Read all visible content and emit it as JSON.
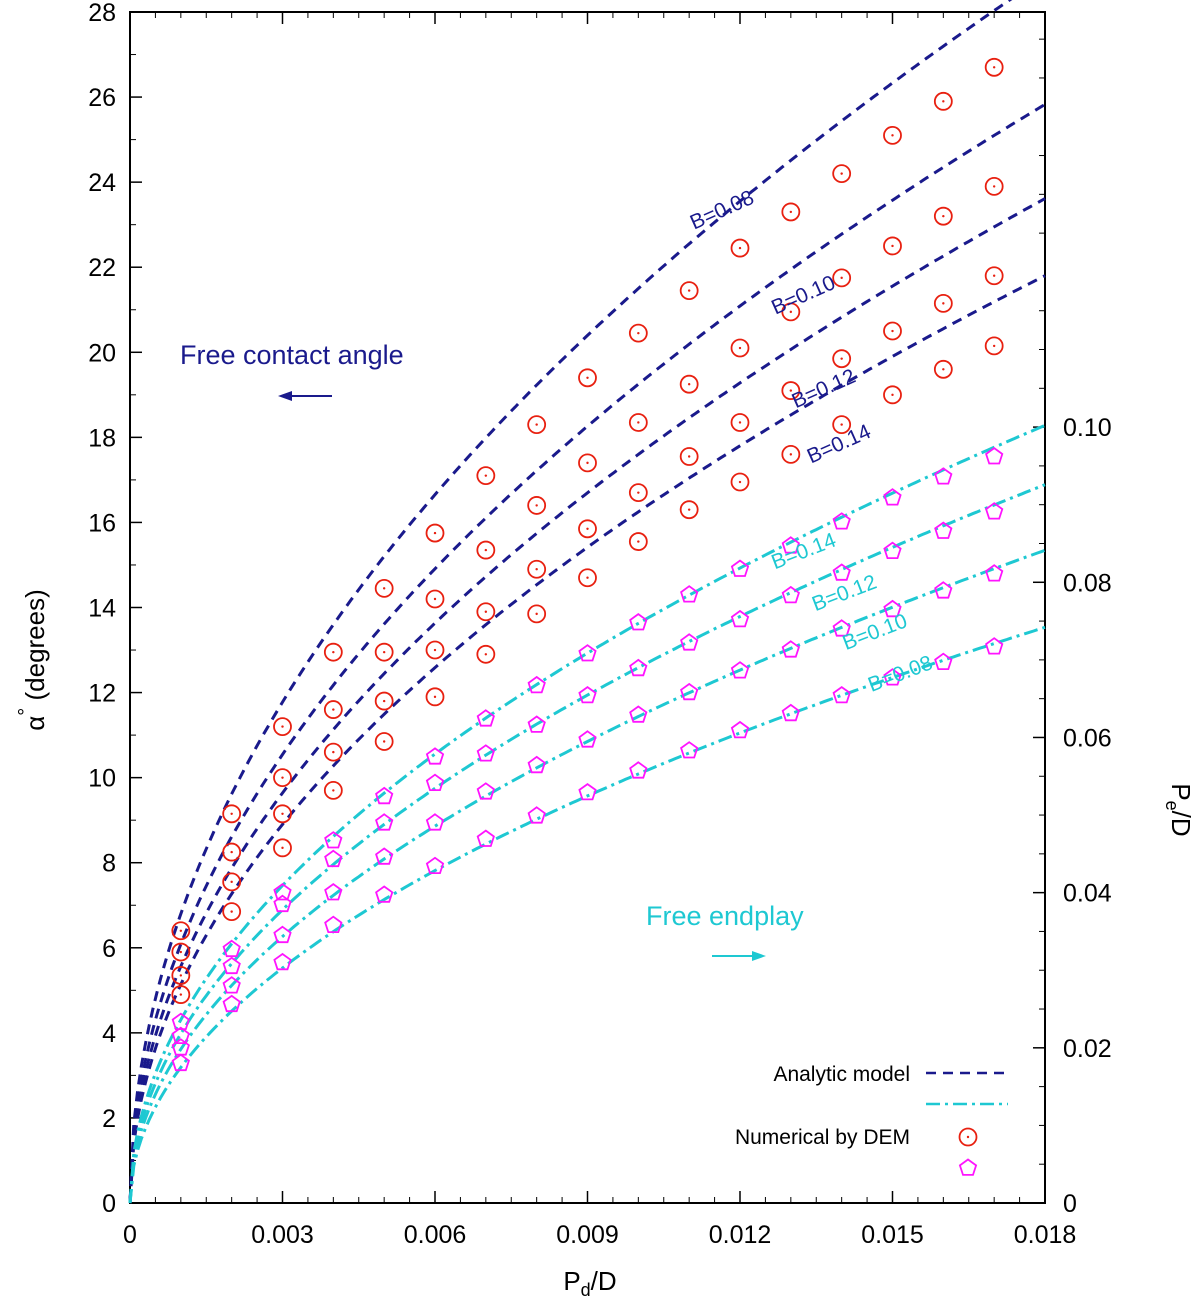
{
  "colors": {
    "analytic_alpha": "#1a1a8c",
    "analytic_endplay": "#1ec8d2",
    "dem_alpha": "#e82010",
    "dem_endplay": "#ff14ff",
    "axis": "#000000"
  },
  "chart_data": {
    "type": "line",
    "xlabel": "P",
    "xlabel_sub": "d",
    "xlabel_tail": "/D",
    "ylabel": "α° (degrees)",
    "ylabel_main": "α",
    "ylabel_sup": "°",
    "ylabel_tail": " (degrees)",
    "y2label": "P",
    "y2label_sub": "e",
    "y2label_tail": "/D",
    "xlim": [
      0,
      0.018
    ],
    "ylim": [
      0,
      28
    ],
    "y2lim": [
      0,
      0.1535
    ],
    "x_ticks": [
      "0",
      "0.003",
      "0.006",
      "0.009",
      "0.012",
      "0.015",
      "0.018"
    ],
    "x_tick_values": [
      0,
      0.003,
      0.006,
      0.009,
      0.012,
      0.015,
      0.018
    ],
    "y_ticks": [
      "0",
      "2",
      "4",
      "6",
      "8",
      "10",
      "12",
      "14",
      "16",
      "18",
      "20",
      "22",
      "24",
      "26",
      "28"
    ],
    "y_tick_values": [
      0,
      2,
      4,
      6,
      8,
      10,
      12,
      14,
      16,
      18,
      20,
      22,
      24,
      26,
      28
    ],
    "y2_ticks": [
      "0",
      "0.02",
      "0.04",
      "0.06",
      "0.08",
      "0.10"
    ],
    "y2_tick_values": [
      0,
      0.02,
      0.04,
      0.06,
      0.08,
      0.1
    ],
    "annotations": {
      "free_contact_angle": "Free contact angle",
      "free_endplay": "Free endplay"
    },
    "legend": {
      "analytic": "Analytic model",
      "dem": "Numerical by DEM",
      "position": "bottom-right"
    },
    "alpha_series": [
      {
        "name": "B=0.08",
        "label": "B=0.08",
        "label_x": 0.0117,
        "label_y": 23.2,
        "label_angle": -24,
        "coef": 215.0,
        "x": [
          0.001,
          0.002,
          0.003,
          0.004,
          0.005,
          0.006,
          0.007,
          0.008,
          0.009,
          0.01,
          0.011,
          0.012,
          0.013,
          0.014,
          0.015,
          0.016,
          0.017
        ],
        "y": [
          6.4,
          9.15,
          11.2,
          12.95,
          14.45,
          15.75,
          17.1,
          18.3,
          19.4,
          20.45,
          21.45,
          22.45,
          23.3,
          24.2,
          25.1,
          25.9,
          26.7
        ]
      },
      {
        "name": "B=0.10",
        "label": "B=0.10",
        "label_x": 0.0133,
        "label_y": 21.2,
        "label_angle": -24,
        "coef": 192.5,
        "x": [
          0.001,
          0.002,
          0.003,
          0.004,
          0.005,
          0.006,
          0.007,
          0.008,
          0.009,
          0.01,
          0.011,
          0.012,
          0.013,
          0.014,
          0.015,
          0.016,
          0.017
        ],
        "y": [
          5.9,
          8.25,
          10.0,
          11.6,
          12.95,
          14.2,
          15.35,
          16.4,
          17.4,
          18.35,
          19.25,
          20.1,
          20.95,
          21.75,
          22.5,
          23.2,
          23.9
        ]
      },
      {
        "name": "B=0.12",
        "label": "B=0.12",
        "label_x": 0.0137,
        "label_y": 19.0,
        "label_angle": -24,
        "coef": 176.0,
        "x": [
          0.001,
          0.002,
          0.003,
          0.004,
          0.005,
          0.006,
          0.007,
          0.008,
          0.009,
          0.01,
          0.011,
          0.012,
          0.013,
          0.014,
          0.015,
          0.016,
          0.017
        ],
        "y": [
          5.35,
          7.55,
          9.15,
          10.6,
          11.8,
          13.0,
          13.9,
          14.9,
          15.85,
          16.7,
          17.55,
          18.35,
          19.1,
          19.85,
          20.5,
          21.15,
          21.8
        ]
      },
      {
        "name": "B=0.14",
        "label": "B=0.14",
        "label_x": 0.014,
        "label_y": 17.7,
        "label_angle": -24,
        "coef": 162.5,
        "x": [
          0.001,
          0.002,
          0.003,
          0.004,
          0.005,
          0.006,
          0.007,
          0.008,
          0.009,
          0.01,
          0.011,
          0.012,
          0.013,
          0.014,
          0.015,
          0.016,
          0.017
        ],
        "y": [
          4.9,
          6.85,
          8.35,
          9.7,
          10.85,
          11.9,
          12.9,
          13.85,
          14.7,
          15.55,
          16.3,
          16.95,
          17.6,
          18.3,
          19.0,
          19.6,
          20.15
        ]
      }
    ],
    "endplay_series": [
      {
        "name": "B=0.14",
        "label": "B=0.14",
        "label_x": 0.0133,
        "label_y": 0.0832,
        "label_angle": -21,
        "coef": 0.747,
        "x": [
          0.001,
          0.002,
          0.003,
          0.004,
          0.005,
          0.006,
          0.007,
          0.008,
          0.009,
          0.01,
          0.011,
          0.012,
          0.013,
          0.014,
          0.015,
          0.016,
          0.017
        ],
        "y": [
          0.0233,
          0.0327,
          0.04,
          0.0467,
          0.0524,
          0.0575,
          0.0624,
          0.0667,
          0.0708,
          0.0748,
          0.0784,
          0.0817,
          0.0847,
          0.0878,
          0.0909,
          0.0936,
          0.0962
        ]
      },
      {
        "name": "B=0.12",
        "label": "B=0.12",
        "label_x": 0.0141,
        "label_y": 0.0778,
        "label_angle": -21,
        "coef": 0.69,
        "x": [
          0.001,
          0.002,
          0.003,
          0.004,
          0.005,
          0.006,
          0.007,
          0.008,
          0.009,
          0.01,
          0.011,
          0.012,
          0.013,
          0.014,
          0.015,
          0.016,
          0.017
        ],
        "y": [
          0.0215,
          0.0305,
          0.0385,
          0.0443,
          0.049,
          0.0541,
          0.0579,
          0.0616,
          0.0654,
          0.0689,
          0.0722,
          0.0752,
          0.0783,
          0.0812,
          0.084,
          0.0866,
          0.0891
        ]
      },
      {
        "name": "B=0.10",
        "label": "B=0.10",
        "label_x": 0.0147,
        "label_y": 0.0728,
        "label_angle": -21,
        "coef": 0.627,
        "x": [
          0.001,
          0.002,
          0.003,
          0.004,
          0.005,
          0.006,
          0.007,
          0.008,
          0.009,
          0.01,
          0.011,
          0.012,
          0.013,
          0.014,
          0.015,
          0.016,
          0.017
        ],
        "y": [
          0.02,
          0.028,
          0.0345,
          0.04,
          0.0446,
          0.049,
          0.053,
          0.0564,
          0.0597,
          0.0629,
          0.0658,
          0.0686,
          0.0713,
          0.074,
          0.0765,
          0.0789,
          0.0811
        ]
      },
      {
        "name": "B=0.08",
        "label": "B=0.08",
        "label_x": 0.0152,
        "label_y": 0.0674,
        "label_angle": -21,
        "coef": 0.553,
        "x": [
          0.001,
          0.002,
          0.003,
          0.004,
          0.005,
          0.006,
          0.007,
          0.008,
          0.009,
          0.01,
          0.011,
          0.012,
          0.013,
          0.014,
          0.015,
          0.016,
          0.017
        ],
        "y": [
          0.018,
          0.0256,
          0.031,
          0.0358,
          0.0397,
          0.0434,
          0.0469,
          0.0499,
          0.0529,
          0.0557,
          0.0583,
          0.0609,
          0.0631,
          0.0654,
          0.0677,
          0.0697,
          0.0717
        ]
      }
    ],
    "grid": false
  }
}
